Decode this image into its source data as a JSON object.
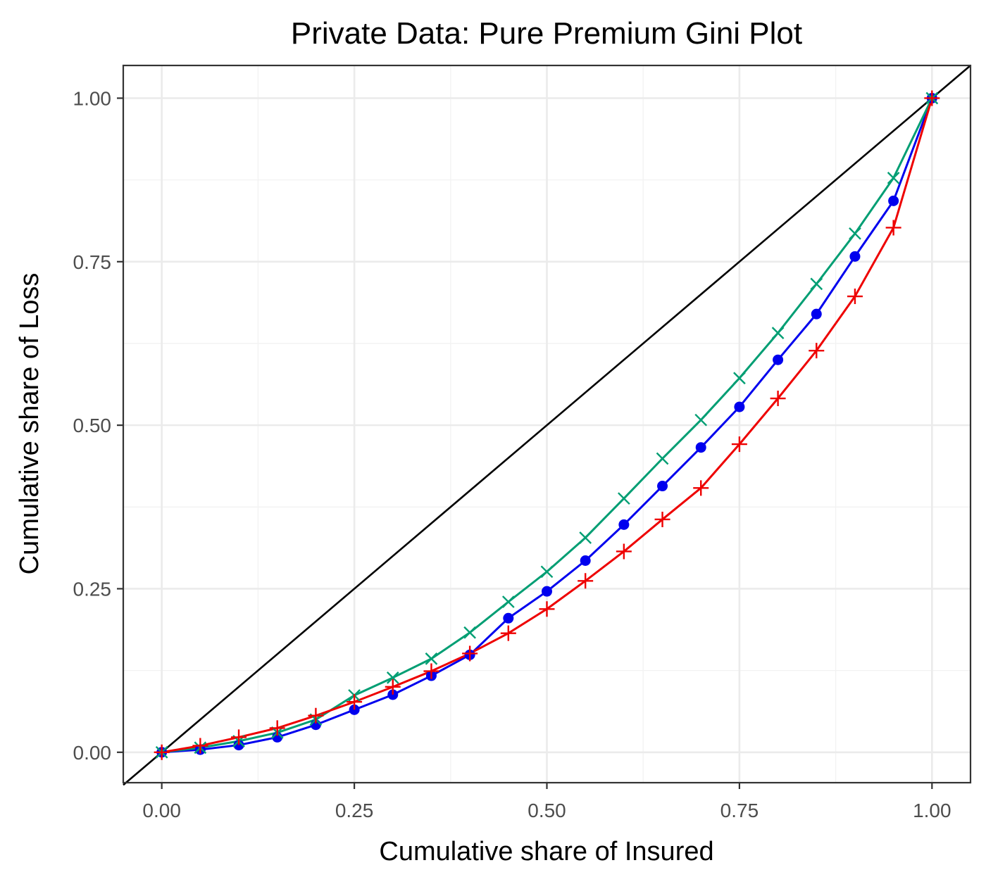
{
  "chart_data": {
    "type": "line",
    "title": "Private Data: Pure Premium Gini Plot",
    "xlabel": "Cumulative share of Insured",
    "ylabel": "Cumulative share of Loss",
    "xlim": [
      -0.05,
      1.05
    ],
    "ylim": [
      -0.0465,
      1.05
    ],
    "x_ticks": [
      0,
      0.25,
      0.5,
      0.75,
      1
    ],
    "x_tick_labels": [
      "0.00",
      "0.25",
      "0.50",
      "0.75",
      "1.00"
    ],
    "y_ticks": [
      0,
      0.25,
      0.5,
      0.75,
      1
    ],
    "y_tick_labels": [
      "0.00",
      "0.25",
      "0.50",
      "0.75",
      "1.00"
    ],
    "grid": true,
    "legend": "none",
    "x": [
      0,
      0.05,
      0.1,
      0.15,
      0.2,
      0.25,
      0.3,
      0.35,
      0.4,
      0.45,
      0.5,
      0.55,
      0.6,
      0.65,
      0.7,
      0.75,
      0.8,
      0.85,
      0.9,
      0.95,
      1
    ],
    "equality_line": {
      "x": [
        -0.05,
        1.05
      ],
      "y": [
        -0.05,
        1.05
      ],
      "color": "#000000"
    },
    "series": [
      {
        "color": "#0000ee",
        "marker": "circle",
        "values": [
          0,
          0.004,
          0.011,
          0.023,
          0.042,
          0.065,
          0.088,
          0.117,
          0.149,
          0.205,
          0.246,
          0.293,
          0.348,
          0.407,
          0.466,
          0.528,
          0.6,
          0.67,
          0.758,
          0.843,
          1.0
        ]
      },
      {
        "color": "#009e73",
        "marker": "x",
        "values": [
          0,
          0.007,
          0.017,
          0.03,
          0.05,
          0.087,
          0.114,
          0.143,
          0.183,
          0.23,
          0.276,
          0.328,
          0.388,
          0.449,
          0.508,
          0.572,
          0.641,
          0.716,
          0.793,
          0.878,
          1.0
        ]
      },
      {
        "color": "#ee0000",
        "marker": "plus",
        "values": [
          0,
          0.01,
          0.023,
          0.037,
          0.056,
          0.077,
          0.1,
          0.124,
          0.151,
          0.182,
          0.219,
          0.262,
          0.307,
          0.356,
          0.404,
          0.471,
          0.541,
          0.614,
          0.697,
          0.802,
          1.0
        ]
      }
    ]
  }
}
